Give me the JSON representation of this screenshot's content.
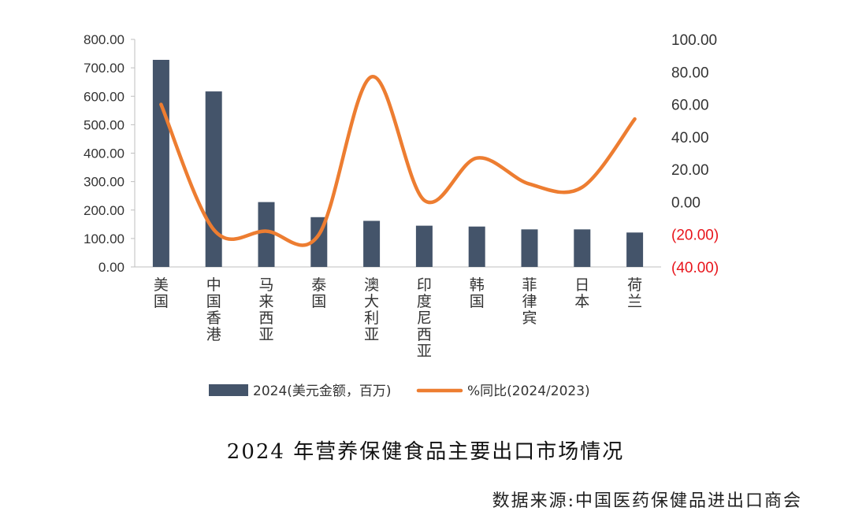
{
  "chart_data": {
    "type": "bar+line",
    "categories": [
      "美国",
      "中国香港",
      "马来西亚",
      "泰国",
      "澳大利亚",
      "印度尼西亚",
      "韩国",
      "菲律宾",
      "日本",
      "荷兰"
    ],
    "series": [
      {
        "name": "2024(美元金额，百万)",
        "type": "bar",
        "axis": "left",
        "color": "#44546a",
        "values": [
          728,
          617,
          228,
          175,
          162,
          145,
          142,
          132,
          132,
          121
        ]
      },
      {
        "name": "%同比(2024/2023)",
        "type": "line",
        "axis": "right",
        "color": "#ed7d31",
        "smooth": true,
        "values": [
          60,
          -17,
          -18,
          -20,
          77,
          1,
          27,
          11,
          9,
          51
        ]
      }
    ],
    "left_axis": {
      "ylim": [
        0,
        800
      ],
      "ticks": [
        "800.00",
        "700.00",
        "600.00",
        "500.00",
        "400.00",
        "300.00",
        "200.00",
        "100.00",
        "0.00"
      ]
    },
    "right_axis": {
      "ylim": [
        -40,
        100
      ],
      "ticks": [
        "100.00",
        "80.00",
        "60.00",
        "40.00",
        "20.00",
        "0.00",
        "(20.00)",
        "(40.00)"
      ],
      "negative_color": "#e8141b"
    },
    "legend": {
      "position": "bottom",
      "items": [
        "2024(美元金额，百万)",
        "%同比(2024/2023)"
      ]
    },
    "grid": false
  },
  "caption": "2024 年营养保健食品主要出口市场情况",
  "source": "数据来源:中国医药保健品进出口商会"
}
